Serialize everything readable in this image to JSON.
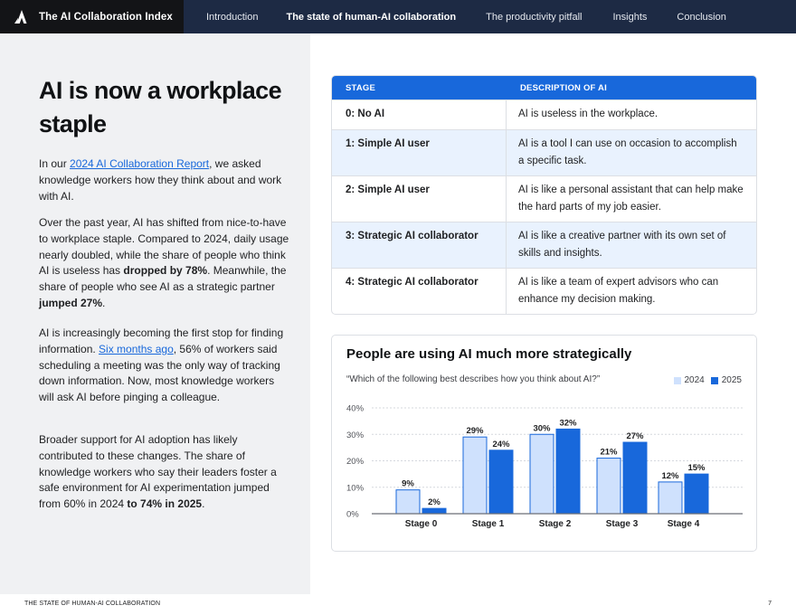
{
  "nav": {
    "brand": "The AI Collaboration Index",
    "items": [
      {
        "label": "Introduction",
        "active": false
      },
      {
        "label": "The state of human-AI collaboration",
        "active": true
      },
      {
        "label": "The productivity pitfall",
        "active": false
      },
      {
        "label": "Insights",
        "active": false
      },
      {
        "label": "Conclusion",
        "active": false
      }
    ]
  },
  "left": {
    "title": "AI is now a workplace staple",
    "p1": {
      "pre": "In our ",
      "link": "2024 AI Collaboration Report",
      "post": ", we asked knowledge workers how they think about and work with AI."
    },
    "p2": {
      "t1": "Over the past year, AI has shifted from nice-to-have to workplace staple. Compared to 2024, daily usage nearly doubled, while the share of people who think AI is useless has ",
      "b1": "dropped by 78%",
      "t2": ". Meanwhile, the share of people who see AI as a strategic partner ",
      "b2": "jumped 27%",
      "t3": "."
    },
    "p3": {
      "t1": "AI is increasingly becoming the first stop for finding information. ",
      "link": "Six months ago",
      "t2": ", 56% of workers said scheduling a meeting was the only way of tracking down information. Now, most knowledge workers will ask AI before pinging a colleague."
    },
    "p4": {
      "t1": "Broader support for AI adoption has likely contributed to these changes. The share of knowledge workers who say their leaders foster a safe environment for AI experimentation jumped from 60% in 2024 ",
      "b1": "to 74% in 2025",
      "t2": "."
    }
  },
  "table": {
    "headers": [
      "STAGE",
      "DESCRIPTION OF AI"
    ],
    "rows": [
      {
        "stage": "0: No AI",
        "desc": "AI is useless in the workplace."
      },
      {
        "stage": "1: Simple AI user",
        "desc": "AI is a tool I can use on occasion to accomplish a specific task."
      },
      {
        "stage": "2: Simple AI user",
        "desc": "AI is like a personal assistant that can help make the hard parts of my job easier."
      },
      {
        "stage": "3: Strategic AI collaborator",
        "desc": "AI is like a creative partner with its own set of skills and insights."
      },
      {
        "stage": "4: Strategic AI collaborator",
        "desc": "AI is like a team of expert advisors who can enhance my decision making."
      }
    ]
  },
  "chart": {
    "title": "People are using AI much more strategically",
    "subtitle": "“Which of the following best describes how you think about AI?”",
    "legend": [
      "2024",
      "2025"
    ]
  },
  "chart_data": {
    "type": "bar",
    "title": "People are using AI much more strategically",
    "subtitle": "“Which of the following best describes how you think about AI?”",
    "categories": [
      "Stage 0",
      "Stage 1",
      "Stage 2",
      "Stage 3",
      "Stage 4"
    ],
    "series": [
      {
        "name": "2024",
        "values": [
          9,
          29,
          30,
          21,
          12
        ],
        "color": "#cfe1fd",
        "border": "#1868db"
      },
      {
        "name": "2025",
        "values": [
          2,
          24,
          32,
          27,
          15
        ],
        "color": "#1868db"
      }
    ],
    "yticks": [
      "0%",
      "10%",
      "20%",
      "30%",
      "40%"
    ],
    "ylim": [
      0,
      40
    ],
    "xlabel": "",
    "ylabel": "",
    "grid": true,
    "legend_position": "top-right",
    "data_labels": true
  },
  "colors": {
    "accent": "#1868db",
    "accent_light": "#cfe1fd",
    "nav_bg": "#1d2a44",
    "brand_bg": "#131417",
    "left_panel_bg": "#f0f1f3",
    "row_alt_bg": "#e9f2fe"
  },
  "footer": {
    "section": "THE STATE OF HUMAN-AI COLLABORATION",
    "page": "7"
  }
}
